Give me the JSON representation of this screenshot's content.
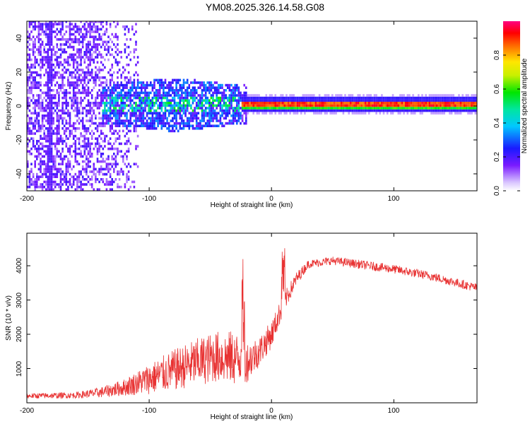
{
  "title": "YM08.2025.326.14.58.G08",
  "colors": {
    "line": "#e83232",
    "heat_low": "#e6d2ff",
    "heat_mid": "#5a14e6",
    "heat_hi": "#ff0000"
  },
  "chart_data": [
    {
      "type": "heatmap",
      "name": "spectrogram",
      "xlabel": "Height of straight line (km)",
      "ylabel": "Frequency (Hz)",
      "xlim": [
        -200,
        168
      ],
      "ylim": [
        -50,
        50
      ],
      "x_ticks": [
        "-200",
        "-100",
        "0",
        "100"
      ],
      "x_tick_values": [
        -200,
        -100,
        0,
        100
      ],
      "y_ticks": [
        "40",
        "20",
        "0",
        "-20",
        "-40"
      ],
      "y_tick_values": [
        40,
        20,
        0,
        -20,
        -40
      ],
      "colorbar": {
        "label": "Normalized spectral amplitude",
        "range": [
          0,
          1
        ],
        "ticks": [
          "0.0",
          "0.2",
          "0.4",
          "0.6",
          "0.8"
        ],
        "tick_values": [
          0.0,
          0.2,
          0.4,
          0.6,
          0.8
        ]
      },
      "description_values": {
        "scatter_region_x": [
          -200,
          -110
        ],
        "cluster_region_x": [
          -140,
          -25
        ],
        "cluster_peak_amplitude": 0.45,
        "band_start_x": -25,
        "band_center_hz": 0,
        "band_amplitude": 0.95
      }
    },
    {
      "type": "line",
      "name": "snr",
      "xlabel": "Height of straight line (km)",
      "ylabel": "SNR (10 * v/v)",
      "xlim": [
        -200,
        168
      ],
      "ylim": [
        0,
        4950
      ],
      "x_ticks": [
        "-200",
        "-100",
        "0",
        "100"
      ],
      "x_tick_values": [
        -200,
        -100,
        0,
        100
      ],
      "y_ticks": [
        "4000",
        "3000",
        "2000",
        "1000"
      ],
      "y_tick_values": [
        4000,
        3000,
        2000,
        1000
      ],
      "trend": {
        "x": [
          -200,
          -160,
          -140,
          -120,
          -100,
          -80,
          -60,
          -45,
          -30,
          -20,
          -10,
          0,
          10,
          20,
          30,
          50,
          70,
          100,
          130,
          168
        ],
        "y": [
          200,
          220,
          300,
          450,
          700,
          950,
          1200,
          1350,
          1300,
          1200,
          1500,
          2000,
          2900,
          3600,
          4050,
          4150,
          4050,
          3900,
          3700,
          3350
        ],
        "noise": [
          80,
          90,
          150,
          250,
          450,
          600,
          700,
          750,
          800,
          600,
          450,
          400,
          300,
          200,
          120,
          120,
          130,
          130,
          130,
          130
        ]
      }
    }
  ]
}
